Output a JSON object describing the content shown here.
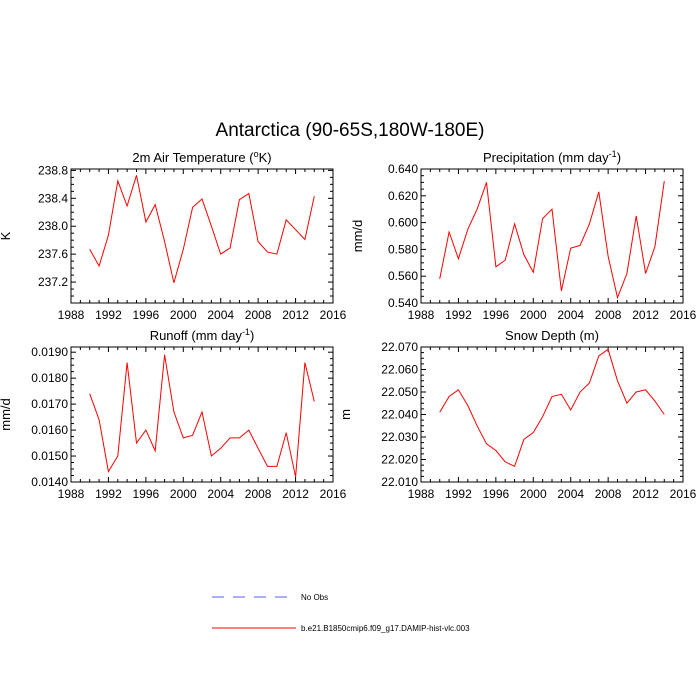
{
  "figure_title": "Antarctica (90-65S,180W-180E)",
  "legend": [
    {
      "label": "No Obs",
      "style": "dashed",
      "color": "#5b5bff"
    },
    {
      "label": "b.e21.B1850cmip6.f09_g17.DAMIP-hist-vlc.003",
      "style": "solid",
      "color": "#ff0000"
    }
  ],
  "chart_data": [
    {
      "type": "line",
      "title": "2m Air Temperature (°K)",
      "title_base": "2m Air Temperature (",
      "title_sup": "o",
      "title_tail": "K)",
      "xlabel": "",
      "ylabel": "K",
      "xlim": [
        1988,
        2016
      ],
      "xticks": [
        1988,
        1992,
        1996,
        2000,
        2004,
        2008,
        2012,
        2016
      ],
      "ylim": [
        236.9,
        238.82
      ],
      "yticks": [
        237.2,
        237.6,
        238.0,
        238.4,
        238.8
      ],
      "ytick_labels": [
        "237.2",
        "237.6",
        "238.0",
        "238.4",
        "238.8"
      ],
      "series": [
        {
          "name": "b.e21.B1850cmip6.f09_g17.DAMIP-hist-vlc.003",
          "x": [
            1990,
            1991,
            1992,
            1993,
            1994,
            1995,
            1996,
            1997,
            1998,
            1999,
            2000,
            2001,
            2002,
            2003,
            2004,
            2005,
            2006,
            2007,
            2008,
            2009,
            2010,
            2011,
            2012,
            2013,
            2014
          ],
          "values": [
            237.67,
            237.43,
            237.87,
            238.65,
            238.29,
            238.73,
            238.06,
            238.31,
            237.78,
            237.19,
            237.67,
            238.27,
            238.39,
            238.0,
            237.6,
            237.69,
            238.38,
            238.47,
            237.78,
            237.63,
            237.6,
            238.09,
            237.95,
            237.81,
            238.43
          ]
        }
      ]
    },
    {
      "type": "line",
      "title": "Precipitation (mm day-1)",
      "title_base": "Precipitation (mm day",
      "title_sup": "-1",
      "title_tail": ")",
      "xlabel": "",
      "ylabel": "mm/d",
      "xlim": [
        1988,
        2016
      ],
      "xticks": [
        1988,
        1992,
        1996,
        2000,
        2004,
        2008,
        2012,
        2016
      ],
      "ylim": [
        0.54,
        0.64
      ],
      "yticks": [
        0.54,
        0.56,
        0.58,
        0.6,
        0.62,
        0.64
      ],
      "ytick_labels": [
        "0.540",
        "0.560",
        "0.580",
        "0.600",
        "0.620",
        "0.640"
      ],
      "series": [
        {
          "name": "b.e21.B1850cmip6.f09_g17.DAMIP-hist-vlc.003",
          "x": [
            1990,
            1991,
            1992,
            1993,
            1994,
            1995,
            1996,
            1997,
            1998,
            1999,
            2000,
            2001,
            2002,
            2003,
            2004,
            2005,
            2006,
            2007,
            2008,
            2009,
            2010,
            2011,
            2012,
            2013,
            2014
          ],
          "values": [
            0.558,
            0.593,
            0.573,
            0.595,
            0.61,
            0.63,
            0.567,
            0.572,
            0.599,
            0.576,
            0.563,
            0.603,
            0.61,
            0.549,
            0.581,
            0.583,
            0.599,
            0.623,
            0.575,
            0.544,
            0.562,
            0.605,
            0.562,
            0.582,
            0.631
          ]
        }
      ]
    },
    {
      "type": "line",
      "title": "Runoff (mm day-1)",
      "title_base": "Runoff (mm day",
      "title_sup": "-1",
      "title_tail": ")",
      "xlabel": "",
      "ylabel": "mm/d",
      "xlim": [
        1988,
        2016
      ],
      "xticks": [
        1988,
        1992,
        1996,
        2000,
        2004,
        2008,
        2012,
        2016
      ],
      "ylim": [
        0.014,
        0.0192
      ],
      "yticks": [
        0.014,
        0.015,
        0.016,
        0.017,
        0.018,
        0.019
      ],
      "ytick_labels": [
        "0.0140",
        "0.0150",
        "0.0160",
        "0.0170",
        "0.0180",
        "0.0190"
      ],
      "series": [
        {
          "name": "b.e21.B1850cmip6.f09_g17.DAMIP-hist-vlc.003",
          "x": [
            1990,
            1991,
            1992,
            1993,
            1994,
            1995,
            1996,
            1997,
            1998,
            1999,
            2000,
            2001,
            2002,
            2003,
            2004,
            2005,
            2006,
            2007,
            2008,
            2009,
            2010,
            2011,
            2012,
            2013,
            2014
          ],
          "values": [
            0.0174,
            0.0164,
            0.0144,
            0.015,
            0.0186,
            0.0155,
            0.016,
            0.0152,
            0.0189,
            0.0167,
            0.0157,
            0.0158,
            0.0167,
            0.015,
            0.0153,
            0.0157,
            0.0157,
            0.016,
            0.0153,
            0.0146,
            0.0146,
            0.0159,
            0.0142,
            0.0186,
            0.0171
          ]
        }
      ]
    },
    {
      "type": "line",
      "title": "Snow Depth (m)",
      "title_base": "Snow Depth (m)",
      "title_sup": "",
      "title_tail": "",
      "xlabel": "",
      "ylabel": "m",
      "xlim": [
        1988,
        2016
      ],
      "xticks": [
        1988,
        1992,
        1996,
        2000,
        2004,
        2008,
        2012,
        2016
      ],
      "ylim": [
        22.01,
        22.07
      ],
      "yticks": [
        22.01,
        22.02,
        22.03,
        22.04,
        22.05,
        22.06,
        22.07
      ],
      "ytick_labels": [
        "22.010",
        "22.020",
        "22.030",
        "22.040",
        "22.050",
        "22.060",
        "22.070"
      ],
      "series": [
        {
          "name": "b.e21.B1850cmip6.f09_g17.DAMIP-hist-vlc.003",
          "x": [
            1990,
            1991,
            1992,
            1993,
            1994,
            1995,
            1996,
            1997,
            1998,
            1999,
            2000,
            2001,
            2002,
            2003,
            2004,
            2005,
            2006,
            2007,
            2008,
            2009,
            2010,
            2011,
            2012,
            2013,
            2014
          ],
          "values": [
            22.041,
            22.048,
            22.051,
            22.044,
            22.035,
            22.027,
            22.024,
            22.019,
            22.017,
            22.029,
            22.032,
            22.039,
            22.048,
            22.049,
            22.042,
            22.05,
            22.054,
            22.066,
            22.069,
            22.055,
            22.045,
            22.05,
            22.051,
            22.046,
            22.04
          ]
        }
      ]
    }
  ]
}
